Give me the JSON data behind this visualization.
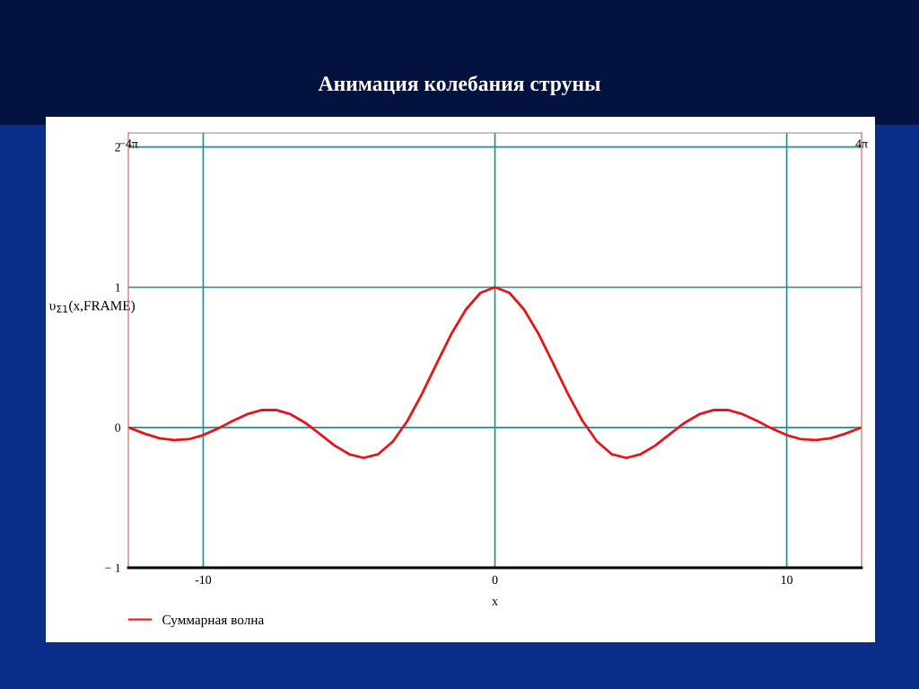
{
  "chart_data": {
    "type": "line",
    "title": "Анимация колебания струны",
    "xlabel": "x",
    "ylabel": "υ$_{Σ1}$(x,FRAME)",
    "x": [
      -12.566,
      -12,
      -11.5,
      -11,
      -10.5,
      -10,
      -9.5,
      -9,
      -8.5,
      -8,
      -7.5,
      -7,
      -6.5,
      -6,
      -5.5,
      -5,
      -4.5,
      -4,
      -3.5,
      -3,
      -2.5,
      -2,
      -1.5,
      -1,
      -0.5,
      0,
      0.5,
      1,
      1.5,
      2,
      2.5,
      3,
      3.5,
      4,
      4.5,
      5,
      5.5,
      6,
      6.5,
      7,
      7.5,
      8,
      8.5,
      9,
      9.5,
      10,
      10.5,
      11,
      11.5,
      12,
      12.566
    ],
    "series": [
      {
        "name": "Суммарная волна",
        "color": "#e8141c",
        "values": [
          0,
          -0.045,
          -0.077,
          -0.09,
          -0.084,
          -0.054,
          -0.008,
          0.046,
          0.094,
          0.124,
          0.125,
          0.094,
          0.033,
          -0.047,
          -0.128,
          -0.19,
          -0.217,
          -0.19,
          -0.1,
          0.047,
          0.24,
          0.455,
          0.665,
          0.84,
          0.96,
          1,
          0.96,
          0.84,
          0.665,
          0.455,
          0.24,
          0.047,
          -0.1,
          -0.19,
          -0.217,
          -0.19,
          -0.128,
          -0.047,
          0.033,
          0.094,
          0.125,
          0.124,
          0.094,
          0.046,
          -0.008,
          -0.054,
          -0.084,
          -0.09,
          -0.077,
          -0.045,
          0
        ]
      }
    ],
    "xlim": [
      -12.566,
      12.566
    ],
    "xticks": [
      -10,
      0,
      10
    ],
    "x2lim": [
      -12.566,
      12.566
    ],
    "x2ticks": [
      {
        "value": -12.566,
        "label": "−4π"
      },
      {
        "value": 12.566,
        "label": "4π"
      }
    ],
    "ylim": [
      -1,
      2.1
    ],
    "yticks": [
      {
        "value": -1,
        "label": "− 1"
      },
      0,
      1,
      2
    ],
    "grid": true,
    "legend": "bottom left",
    "marker": "none",
    "line_style": "solid"
  }
}
